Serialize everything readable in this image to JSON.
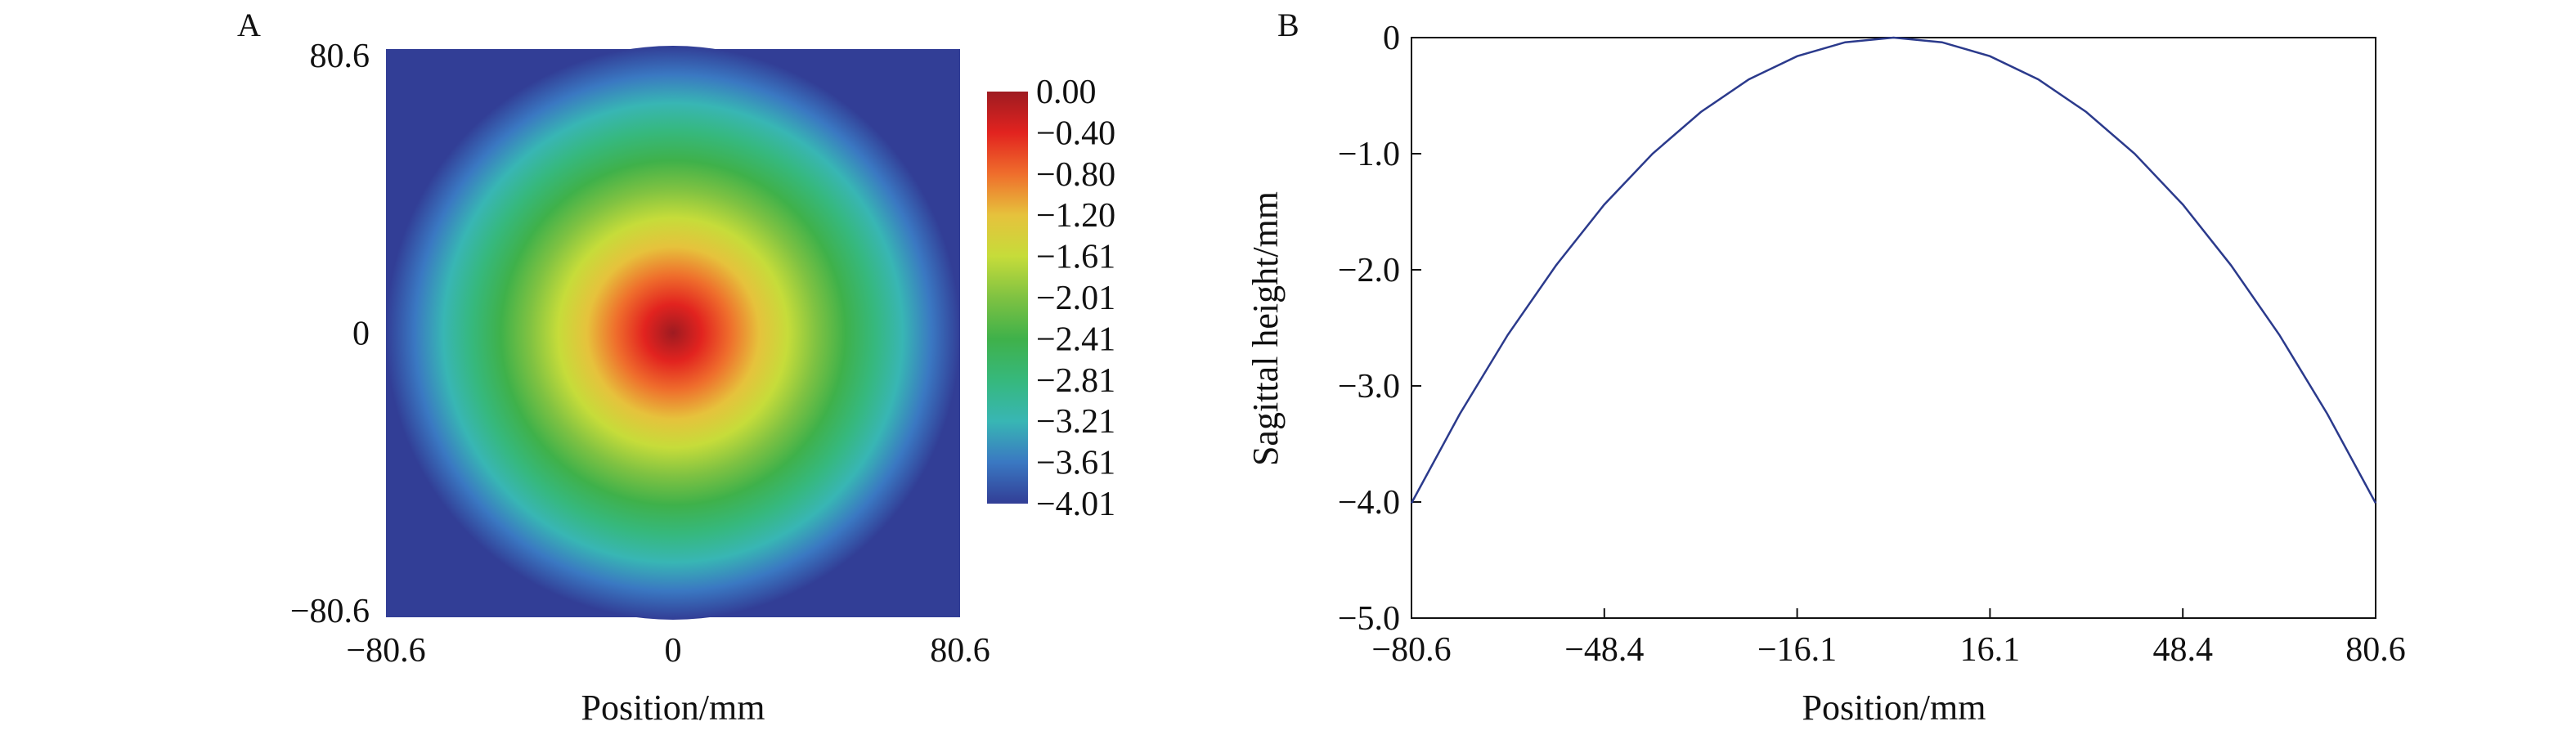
{
  "chart_data": [
    {
      "panel_label": "A",
      "type": "heatmap",
      "title": "",
      "xlabel": "Position/mm",
      "ylabel": "",
      "xlim": [
        -80.6,
        80.6
      ],
      "ylim": [
        -80.6,
        80.6
      ],
      "x_ticks": [
        "−80.6",
        "0",
        "80.6"
      ],
      "y_ticks": [
        "80.6",
        "0",
        "−80.6"
      ],
      "grid": false,
      "colorbar": {
        "range": [
          -4.01,
          0.0
        ],
        "tick_labels": [
          "0.00",
          "−0.40",
          "−0.80",
          "−1.20",
          "−1.61",
          "−2.01",
          "−2.41",
          "−2.81",
          "−3.21",
          "−3.61",
          "−4.01"
        ],
        "colormap": [
          "#9e1b21",
          "#e2231f",
          "#ef6e2c",
          "#e6c23c",
          "#c6dc3a",
          "#7fc242",
          "#3fb14a",
          "#36b87c",
          "#38b6b4",
          "#3a78c2",
          "#323e96"
        ]
      },
      "surface": {
        "description_free": true,
        "center_value": 0.0,
        "edge_value": -4.01,
        "aperture_radius": 80.6,
        "background_color": "#323e96"
      }
    },
    {
      "panel_label": "B",
      "type": "line",
      "title": "",
      "xlabel": "Position/mm",
      "ylabel": "Sagittal height/mm",
      "xlim": [
        -80.6,
        80.6
      ],
      "ylim": [
        -5.0,
        0.0
      ],
      "x_ticks": [
        "−80.6",
        "−48.4",
        "−16.1",
        "16.1",
        "48.4",
        "80.6"
      ],
      "y_ticks": [
        "0",
        "−1.0",
        "−2.0",
        "−3.0",
        "−4.0",
        "−5.0"
      ],
      "grid": false,
      "series": [
        {
          "color": "#2b3a8c",
          "x": [
            -80.6,
            -72.5,
            -64.5,
            -56.4,
            -48.4,
            -40.3,
            -32.2,
            -24.2,
            -16.1,
            -8.1,
            0.0,
            8.1,
            16.1,
            24.2,
            32.2,
            40.3,
            48.4,
            56.4,
            64.5,
            72.5,
            80.6
          ],
          "y": [
            -4.01,
            -3.24,
            -2.56,
            -1.96,
            -1.44,
            -1.0,
            -0.64,
            -0.36,
            -0.16,
            -0.04,
            0.0,
            -0.04,
            -0.16,
            -0.36,
            -0.64,
            -1.0,
            -1.44,
            -1.96,
            -2.56,
            -3.24,
            -4.01
          ]
        }
      ]
    }
  ]
}
